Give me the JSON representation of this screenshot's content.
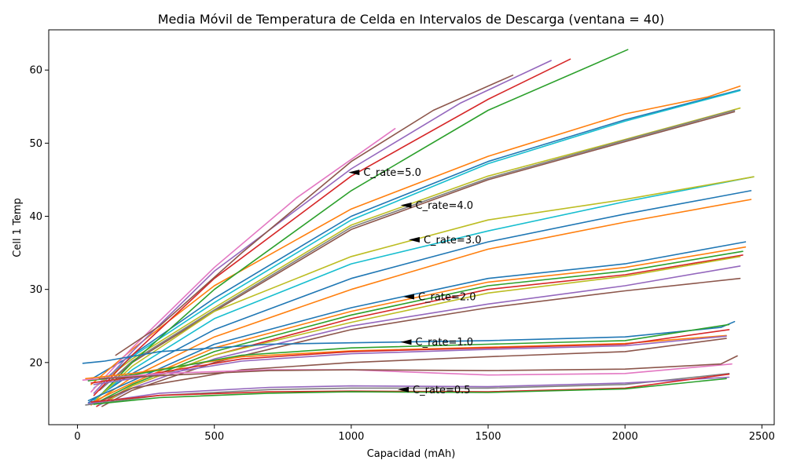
{
  "chart_data": {
    "type": "line",
    "title": "Media Móvil de Temperatura de Celda en Intervalos de Descarga (ventana = 40)",
    "xlabel": "Capacidad (mAh)",
    "ylabel": "Cell 1 Temp",
    "xlim": [
      -105,
      2545
    ],
    "ylim": [
      11.5,
      65.5
    ],
    "xticks": [
      0,
      500,
      1000,
      1500,
      2000,
      2500
    ],
    "yticks": [
      20,
      30,
      40,
      50,
      60
    ],
    "grid": false,
    "annotations": [
      {
        "text": "C_rate=5.0",
        "x": 1030,
        "y": 46.0
      },
      {
        "text": "C_rate=4.0",
        "x": 1220,
        "y": 41.5
      },
      {
        "text": "C_rate=3.0",
        "x": 1250,
        "y": 36.8
      },
      {
        "text": "C_rate=2.0",
        "x": 1230,
        "y": 29.0
      },
      {
        "text": "C_rate=1.0",
        "x": 1220,
        "y": 22.8
      },
      {
        "text": "C_rate=0.5",
        "x": 1210,
        "y": 16.3
      }
    ],
    "series": [
      {
        "color": "#1f77b4",
        "x": [
          40,
          200,
          500,
          1000,
          1500,
          2000,
          2420
        ],
        "y": [
          17.5,
          21.0,
          28.8,
          40.0,
          47.5,
          53.2,
          57.3
        ]
      },
      {
        "color": "#ff7f0e",
        "x": [
          50,
          200,
          500,
          1000,
          1500,
          2000,
          2300,
          2420
        ],
        "y": [
          17.0,
          21.8,
          30.5,
          41.0,
          48.2,
          54.0,
          56.3,
          57.8
        ]
      },
      {
        "color": "#17becf",
        "x": [
          60,
          200,
          500,
          1000,
          1500,
          2000,
          2420
        ],
        "y": [
          16.5,
          20.8,
          28.2,
          39.5,
          47.2,
          53.0,
          57.2
        ]
      },
      {
        "color": "#bcbd22",
        "x": [
          70,
          200,
          500,
          1000,
          1500,
          2000,
          2420
        ],
        "y": [
          16.8,
          20.5,
          27.5,
          38.8,
          45.5,
          50.5,
          54.8
        ]
      },
      {
        "color": "#8c564b",
        "x": [
          80,
          200,
          500,
          1000,
          1500,
          2000,
          2400
        ],
        "y": [
          16.2,
          20.0,
          27.0,
          38.2,
          45.0,
          50.2,
          54.3
        ]
      },
      {
        "color": "#7f7f7f",
        "x": [
          90,
          200,
          500,
          1000,
          1500,
          2000,
          2400
        ],
        "y": [
          16.5,
          20.2,
          27.2,
          38.5,
          45.2,
          50.4,
          54.5
        ]
      },
      {
        "color": "#e377c2",
        "x": [
          50,
          200,
          500,
          800,
          1160
        ],
        "y": [
          16.0,
          22.0,
          33.0,
          42.5,
          52.0
        ]
      },
      {
        "color": "#d62728",
        "x": [
          60,
          200,
          500,
          1000,
          1500,
          1800
        ],
        "y": [
          15.5,
          21.0,
          31.5,
          45.5,
          56.0,
          61.5
        ]
      },
      {
        "color": "#2ca02c",
        "x": [
          70,
          200,
          500,
          1000,
          1500,
          2010
        ],
        "y": [
          15.0,
          20.0,
          30.0,
          43.5,
          54.5,
          62.8
        ]
      },
      {
        "color": "#9467bd",
        "x": [
          60,
          200,
          500,
          1000,
          1400,
          1730
        ],
        "y": [
          15.8,
          21.5,
          32.5,
          46.5,
          55.5,
          61.3
        ]
      },
      {
        "color": "#8c564b",
        "x": [
          140,
          300,
          600,
          1000,
          1300,
          1590
        ],
        "y": [
          21.0,
          25.0,
          35.0,
          47.5,
          54.5,
          59.3
        ]
      },
      {
        "color": "#1f77b4",
        "x": [
          40,
          200,
          500,
          1000,
          1500,
          2000,
          2460
        ],
        "y": [
          14.5,
          18.5,
          24.5,
          31.5,
          36.5,
          40.3,
          43.5
        ]
      },
      {
        "color": "#ff7f0e",
        "x": [
          50,
          200,
          500,
          1000,
          1500,
          2000,
          2460
        ],
        "y": [
          14.2,
          18.0,
          23.5,
          30.0,
          35.5,
          39.2,
          42.3
        ]
      },
      {
        "color": "#17becf",
        "x": [
          60,
          200,
          500,
          1000,
          1500,
          2000,
          2470
        ],
        "y": [
          14.8,
          19.0,
          26.0,
          33.5,
          38.0,
          42.0,
          45.4
        ]
      },
      {
        "color": "#bcbd22",
        "x": [
          70,
          200,
          500,
          1000,
          1500,
          2000,
          2470
        ],
        "y": [
          15.0,
          19.5,
          27.0,
          34.5,
          39.5,
          42.3,
          45.4
        ]
      },
      {
        "color": "#1f77b4",
        "x": [
          40,
          200,
          500,
          1000,
          1500,
          2000,
          2440
        ],
        "y": [
          14.8,
          17.5,
          22.5,
          27.5,
          31.5,
          33.5,
          36.5
        ]
      },
      {
        "color": "#ff7f0e",
        "x": [
          50,
          200,
          500,
          1000,
          1500,
          2000,
          2440
        ],
        "y": [
          14.5,
          17.2,
          22.0,
          27.0,
          31.0,
          33.0,
          35.8
        ]
      },
      {
        "color": "#2ca02c",
        "x": [
          60,
          200,
          500,
          1000,
          1500,
          2000,
          2430
        ],
        "y": [
          14.3,
          17.0,
          21.5,
          26.5,
          30.5,
          32.5,
          35.2
        ]
      },
      {
        "color": "#d62728",
        "x": [
          70,
          200,
          500,
          1000,
          1500,
          2000,
          2430
        ],
        "y": [
          14.0,
          16.8,
          21.0,
          26.0,
          30.0,
          32.0,
          34.7
        ]
      },
      {
        "color": "#9467bd",
        "x": [
          80,
          200,
          500,
          1000,
          1500,
          2000,
          2420
        ],
        "y": [
          14.2,
          16.5,
          20.5,
          25.0,
          28.0,
          30.5,
          33.2
        ]
      },
      {
        "color": "#8c564b",
        "x": [
          90,
          200,
          500,
          1000,
          1500,
          2000,
          2420
        ],
        "y": [
          14.0,
          16.2,
          20.0,
          24.5,
          27.5,
          29.8,
          31.5
        ]
      },
      {
        "color": "#bcbd22",
        "x": [
          100,
          200,
          500,
          1000,
          1500,
          2000,
          2420
        ],
        "y": [
          14.5,
          16.8,
          21.0,
          25.5,
          29.5,
          31.8,
          34.5
        ]
      },
      {
        "color": "#1f77b4",
        "x": [
          20,
          100,
          300,
          700,
          1000,
          1500,
          2000,
          2350,
          2400
        ],
        "y": [
          19.9,
          20.2,
          21.5,
          22.5,
          22.7,
          23.0,
          23.5,
          24.8,
          25.6
        ]
      },
      {
        "color": "#ff7f0e",
        "x": [
          30,
          200,
          600,
          1000,
          1500,
          2000,
          2370
        ],
        "y": [
          17.8,
          18.5,
          20.8,
          21.6,
          22.1,
          22.6,
          23.7
        ]
      },
      {
        "color": "#2ca02c",
        "x": [
          40,
          200,
          600,
          1000,
          1500,
          2000,
          2380
        ],
        "y": [
          17.5,
          18.3,
          21.0,
          22.0,
          22.5,
          23.0,
          25.2
        ]
      },
      {
        "color": "#d62728",
        "x": [
          50,
          200,
          600,
          1000,
          1500,
          2000,
          2380
        ],
        "y": [
          17.2,
          18.0,
          20.5,
          21.5,
          22.0,
          22.5,
          24.5
        ]
      },
      {
        "color": "#9467bd",
        "x": [
          60,
          200,
          600,
          1000,
          1500,
          2000,
          2370
        ],
        "y": [
          17.0,
          17.8,
          20.2,
          21.2,
          21.8,
          22.3,
          23.6
        ]
      },
      {
        "color": "#8c564b",
        "x": [
          70,
          200,
          600,
          1000,
          1500,
          2000,
          2370
        ],
        "y": [
          14.5,
          16.5,
          19.0,
          20.0,
          20.8,
          21.5,
          23.3
        ]
      },
      {
        "color": "#e377c2",
        "x": [
          20,
          300,
          700,
          1000,
          1500,
          2000,
          2390
        ],
        "y": [
          17.6,
          18.5,
          19.0,
          19.0,
          18.3,
          18.5,
          19.8
        ]
      },
      {
        "color": "#8c564b",
        "x": [
          80,
          300,
          700,
          1000,
          1500,
          2000,
          2350,
          2410
        ],
        "y": [
          17.8,
          18.2,
          18.9,
          19.0,
          18.9,
          19.1,
          19.8,
          20.9
        ]
      },
      {
        "color": "#7f7f7f",
        "x": [
          30,
          300,
          700,
          1000,
          1500,
          2000,
          2380
        ],
        "y": [
          14.2,
          15.5,
          16.3,
          16.5,
          16.5,
          17.0,
          18.5
        ]
      },
      {
        "color": "#9467bd",
        "x": [
          40,
          300,
          700,
          1000,
          1500,
          2000,
          2380
        ],
        "y": [
          14.4,
          15.8,
          16.6,
          16.8,
          16.7,
          17.2,
          18.0
        ]
      },
      {
        "color": "#d62728",
        "x": [
          50,
          300,
          700,
          1000,
          1500,
          2000,
          2380
        ],
        "y": [
          14.6,
          15.5,
          16.0,
          16.1,
          16.0,
          16.5,
          18.4
        ]
      },
      {
        "color": "#2ca02c",
        "x": [
          60,
          300,
          700,
          1000,
          1500,
          2000,
          2370
        ],
        "y": [
          14.3,
          15.2,
          15.8,
          16.0,
          15.9,
          16.4,
          17.8
        ]
      }
    ]
  }
}
